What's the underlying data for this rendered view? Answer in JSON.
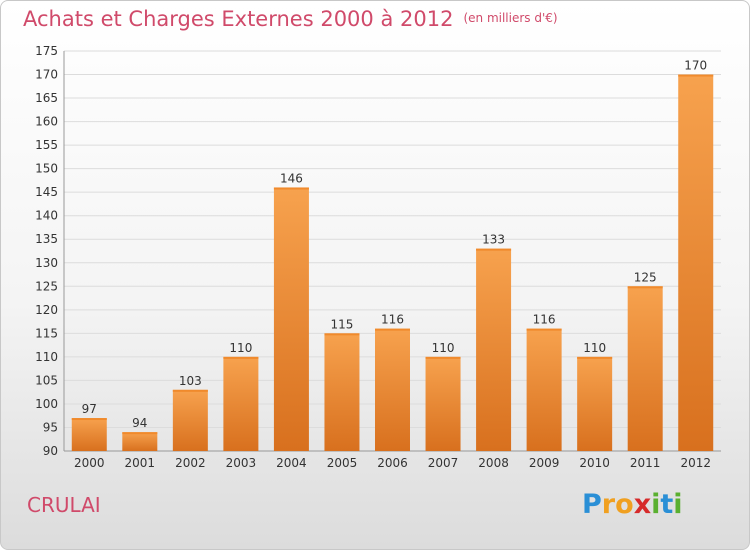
{
  "chart_data": {
    "type": "bar",
    "title": "Achats et Charges Externes 2000 à 2012",
    "subtitle": "(en milliers d'€)",
    "categories": [
      "2000",
      "2001",
      "2002",
      "2003",
      "2004",
      "2005",
      "2006",
      "2007",
      "2008",
      "2009",
      "2010",
      "2011",
      "2012"
    ],
    "values": [
      97,
      94,
      103,
      110,
      146,
      115,
      116,
      110,
      133,
      116,
      110,
      125,
      170
    ],
    "ylim": [
      90,
      175
    ],
    "yticks": [
      90,
      95,
      100,
      105,
      110,
      115,
      120,
      125,
      130,
      135,
      140,
      145,
      150,
      155,
      160,
      165,
      170,
      175
    ],
    "grid": true,
    "bar_color": "#f08a2c"
  },
  "footer": {
    "commune": "CRULAI",
    "logo": {
      "letters": [
        "P",
        "r",
        "o",
        "x",
        "i",
        "t",
        "i"
      ],
      "colors": [
        "#2a8fd6",
        "#f0a020",
        "#f0a020",
        "#d62a2a",
        "#5ab030",
        "#2a8fd6",
        "#5ab030"
      ]
    }
  }
}
